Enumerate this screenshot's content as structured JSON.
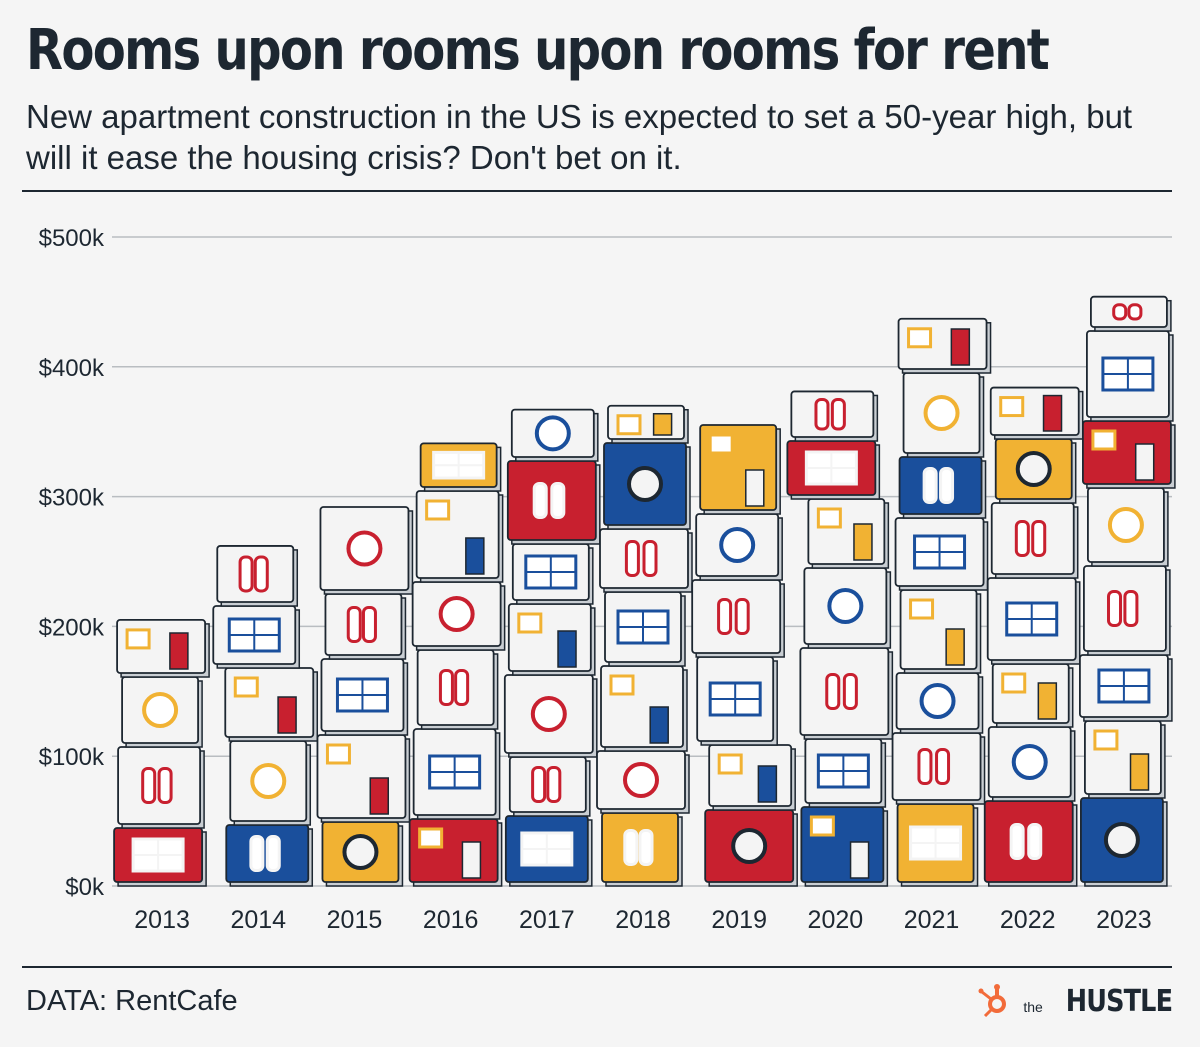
{
  "header": {
    "title": "Rooms upon rooms upon rooms for rent",
    "subtitle": "New apartment construction in the US is expected to set a 50-year high, but will it ease the housing crisis? Don't bet on it."
  },
  "footer": {
    "source": "DATA: RentCafe",
    "logo_small": "the",
    "logo_word": "HUSTLE"
  },
  "colors": {
    "red": "#c8202f",
    "blue": "#1a4f9c",
    "yellow": "#f1b233",
    "ink": "#1d2731",
    "wall": "#f4f4f4",
    "shade": "#c9ced3"
  },
  "chart_data": {
    "type": "bar",
    "style": "stacked illustrated apartment buildings",
    "categories": [
      "2013",
      "2014",
      "2015",
      "2016",
      "2017",
      "2018",
      "2019",
      "2020",
      "2021",
      "2022",
      "2023"
    ],
    "values": [
      205000,
      262000,
      292000,
      341000,
      367000,
      370000,
      356000,
      381000,
      437000,
      384000,
      454000
    ],
    "ylim": [
      0,
      500000
    ],
    "yticks": [
      0,
      100000,
      200000,
      300000,
      400000,
      500000
    ],
    "ytick_labels": [
      "$0k",
      "$100k",
      "$200k",
      "$300k",
      "$400k",
      "$500k"
    ],
    "xlabel": "",
    "ylabel": "",
    "grid": true
  }
}
